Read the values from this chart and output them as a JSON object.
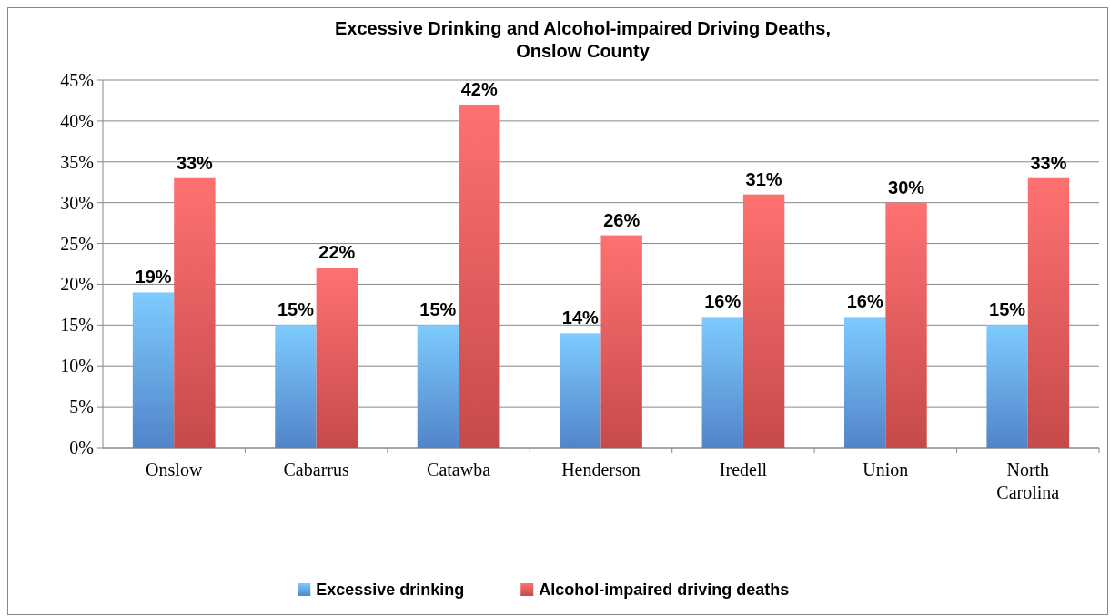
{
  "chart_data": {
    "type": "bar",
    "title": "Excessive Drinking and Alcohol-impaired Driving Deaths,\nOnslow County",
    "categories": [
      "Onslow",
      "Cabarrus",
      "Catawba",
      "Henderson",
      "Iredell",
      "Union",
      "North Carolina"
    ],
    "series": [
      {
        "name": "Excessive drinking",
        "color": "#5b93e0",
        "values": [
          19,
          15,
          15,
          14,
          16,
          16,
          15
        ],
        "value_labels": [
          "19%",
          "15%",
          "15%",
          "14%",
          "16%",
          "16%",
          "15%"
        ]
      },
      {
        "name": "Alcohol-impaired driving deaths",
        "color": "#dc5252",
        "values": [
          33,
          22,
          42,
          26,
          31,
          30,
          33
        ],
        "value_labels": [
          "33%",
          "22%",
          "42%",
          "26%",
          "31%",
          "30%",
          "33%"
        ]
      }
    ],
    "ylim": [
      0,
      45
    ],
    "yticks": [
      {
        "value": 0,
        "label": "0%"
      },
      {
        "value": 5,
        "label": "5%"
      },
      {
        "value": 10,
        "label": "10%"
      },
      {
        "value": 15,
        "label": "15%"
      },
      {
        "value": 20,
        "label": "20%"
      },
      {
        "value": 25,
        "label": "25%"
      },
      {
        "value": 30,
        "label": "30%"
      },
      {
        "value": 35,
        "label": "35%"
      },
      {
        "value": 40,
        "label": "40%"
      },
      {
        "value": 45,
        "label": "45%"
      }
    ],
    "grid": "y",
    "legend": "bottom"
  }
}
